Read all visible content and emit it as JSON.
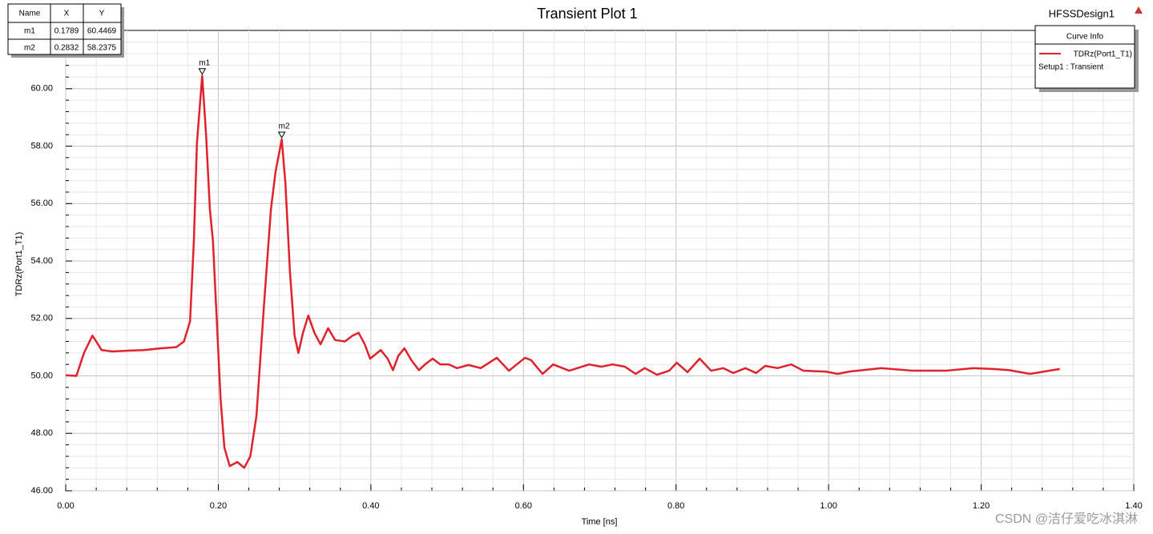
{
  "chart_data": {
    "type": "line",
    "title": "Transient Plot 1",
    "design_name": "HFSSDesign1",
    "xlabel": "Time [ns]",
    "ylabel": "TDRz(Port1_T1)",
    "xlim": [
      0,
      1.4
    ],
    "ylim": [
      46,
      62.03
    ],
    "xticks": [
      {
        "value": 0,
        "label": "0.00"
      },
      {
        "value": 0.2,
        "label": "0.20"
      },
      {
        "value": 0.4,
        "label": "0.40"
      },
      {
        "value": 0.6,
        "label": "0.60"
      },
      {
        "value": 0.8,
        "label": "0.80"
      },
      {
        "value": 1.0,
        "label": "1.00"
      },
      {
        "value": 1.2,
        "label": "1.20"
      },
      {
        "value": 1.4,
        "label": "1.40"
      }
    ],
    "yticks": [
      {
        "value": 46,
        "label": "46.00"
      },
      {
        "value": 48,
        "label": "48.00"
      },
      {
        "value": 50,
        "label": "50.00"
      },
      {
        "value": 52,
        "label": "52.00"
      },
      {
        "value": 54,
        "label": "54.00"
      },
      {
        "value": 56,
        "label": "56.00"
      },
      {
        "value": 58,
        "label": "58.00"
      },
      {
        "value": 60,
        "label": "60.00"
      }
    ],
    "grid": true,
    "minor_divisions": 5,
    "legend": {
      "title": "Curve Info",
      "subtitle": "Setup1 : Transient",
      "position": "upper right"
    },
    "series": [
      {
        "name": "TDRz(Port1_T1)",
        "color": "#e0222c",
        "x": [
          0,
          0.014,
          0.024,
          0.035,
          0.04,
          0.047,
          0.061,
          0.082,
          0.103,
          0.124,
          0.145,
          0.155,
          0.163,
          0.168,
          0.172,
          0.1789,
          0.184,
          0.189,
          0.193,
          0.197,
          0.203,
          0.208,
          0.215,
          0.225,
          0.234,
          0.242,
          0.25,
          0.26,
          0.269,
          0.275,
          0.2832,
          0.288,
          0.294,
          0.3,
          0.305,
          0.311,
          0.318,
          0.326,
          0.334,
          0.344,
          0.353,
          0.366,
          0.376,
          0.384,
          0.392,
          0.399,
          0.413,
          0.422,
          0.429,
          0.436,
          0.444,
          0.453,
          0.463,
          0.471,
          0.481,
          0.491,
          0.502,
          0.513,
          0.528,
          0.544,
          0.565,
          0.581,
          0.602,
          0.61,
          0.625,
          0.639,
          0.66,
          0.686,
          0.702,
          0.717,
          0.733,
          0.747,
          0.759,
          0.775,
          0.791,
          0.801,
          0.815,
          0.831,
          0.846,
          0.862,
          0.875,
          0.891,
          0.905,
          0.917,
          0.933,
          0.951,
          0.967,
          0.996,
          1.012,
          1.027,
          1.069,
          1.111,
          1.153,
          1.19,
          1.216,
          1.237,
          1.264,
          1.303
        ],
        "values": [
          50.02,
          50.0,
          50.8,
          51.4,
          51.2,
          50.9,
          50.85,
          50.88,
          50.9,
          50.96,
          51.0,
          51.2,
          51.9,
          54.7,
          58.1,
          60.4469,
          58.4,
          55.8,
          54.7,
          52.5,
          49.2,
          47.5,
          46.86,
          47.0,
          46.8,
          47.2,
          48.6,
          52.5,
          55.8,
          57.1,
          58.2375,
          56.7,
          53.6,
          51.4,
          50.8,
          51.5,
          52.1,
          51.5,
          51.1,
          51.66,
          51.25,
          51.2,
          51.4,
          51.5,
          51.1,
          50.6,
          50.9,
          50.6,
          50.2,
          50.7,
          50.96,
          50.55,
          50.2,
          50.4,
          50.6,
          50.4,
          50.4,
          50.27,
          50.38,
          50.27,
          50.63,
          50.18,
          50.63,
          50.55,
          50.07,
          50.4,
          50.18,
          50.4,
          50.32,
          50.4,
          50.32,
          50.07,
          50.27,
          50.04,
          50.18,
          50.46,
          50.13,
          50.6,
          50.18,
          50.27,
          50.1,
          50.27,
          50.1,
          50.35,
          50.27,
          50.4,
          50.18,
          50.15,
          50.07,
          50.15,
          50.27,
          50.18,
          50.18,
          50.27,
          50.24,
          50.2,
          50.07,
          50.24
        ]
      }
    ],
    "marker_table_headers": [
      "Name",
      "X",
      "Y"
    ],
    "markers": [
      {
        "name": "m1",
        "x": 0.1789,
        "y": 60.4469
      },
      {
        "name": "m2",
        "x": 0.2832,
        "y": 58.2375
      }
    ],
    "watermark": "CSDN @洁仔爱吃冰淇淋"
  }
}
